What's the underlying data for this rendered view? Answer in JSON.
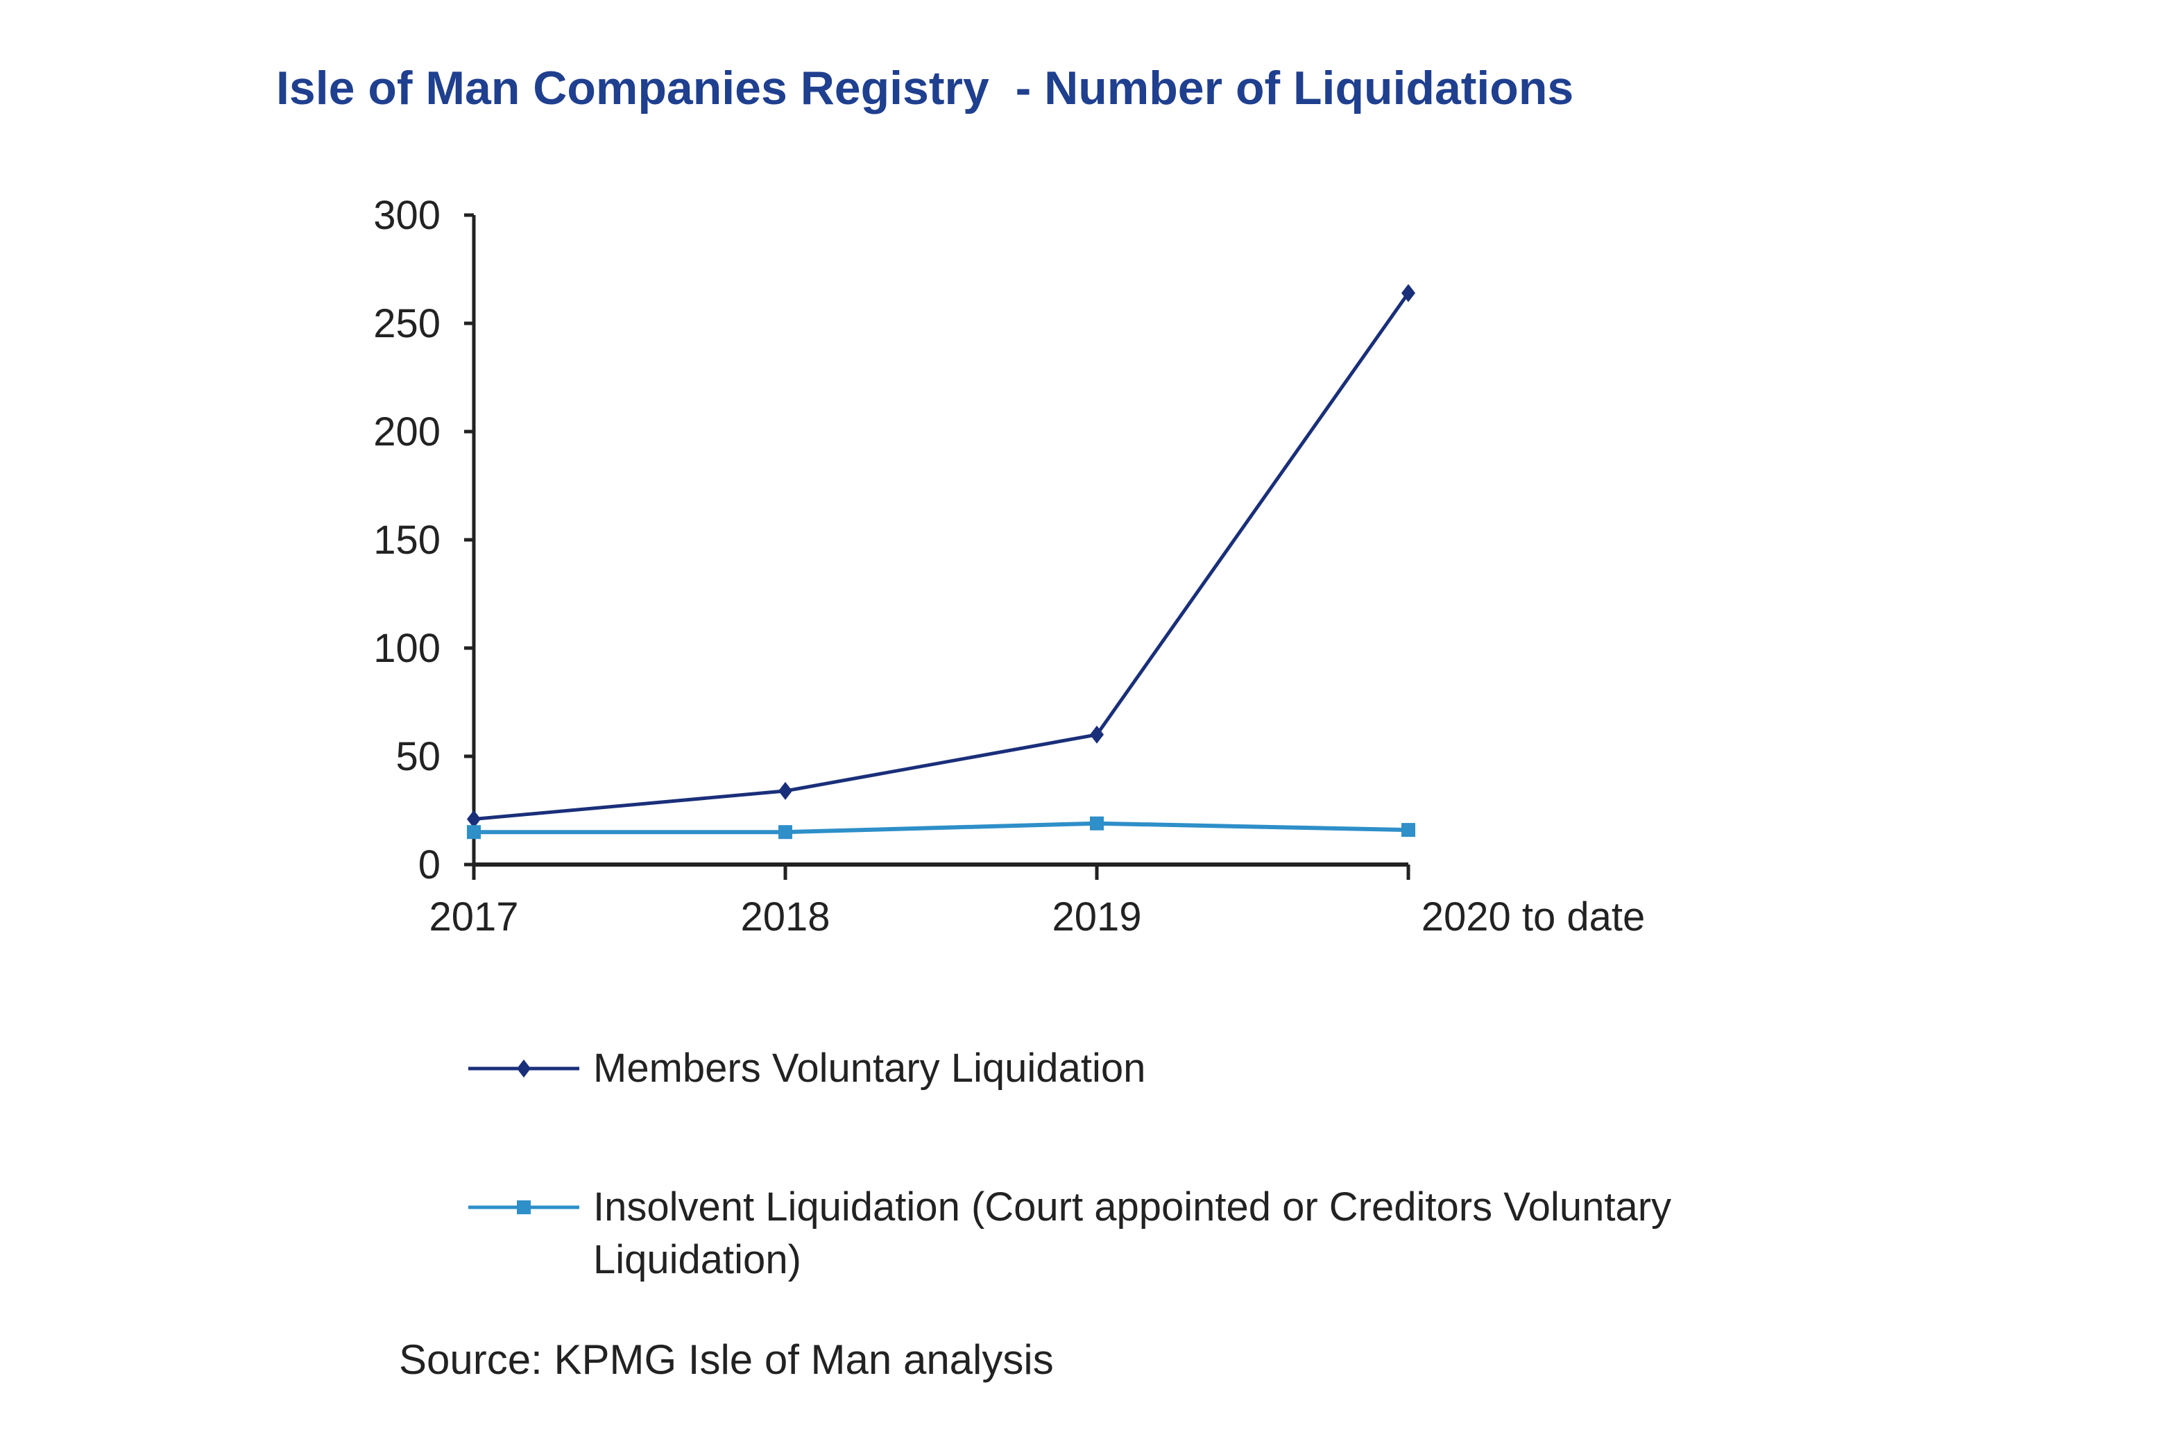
{
  "chart_data": {
    "type": "line",
    "title": "Isle of Man Companies Registry  - Number of Liquidations",
    "categories": [
      "2017",
      "2018",
      "2019",
      "2020 to date"
    ],
    "series": [
      {
        "name": "Members Voluntary Liquidation",
        "values": [
          21,
          34,
          60,
          264
        ],
        "color": "#1a2f7a",
        "marker": "diamond"
      },
      {
        "name": "Insolvent Liquidation (Court appointed or Creditors Voluntary Liquidation)",
        "values": [
          15,
          15,
          19,
          16
        ],
        "color": "#2e8fc9",
        "marker": "square"
      }
    ],
    "ylim": [
      0,
      300
    ],
    "yticks": [
      "0",
      "50",
      "100",
      "150",
      "200",
      "250",
      "300"
    ],
    "xlabel": "",
    "ylabel": "",
    "grid": false,
    "legend_position": "bottom",
    "source": "Source: KPMG Isle of Man analysis"
  }
}
